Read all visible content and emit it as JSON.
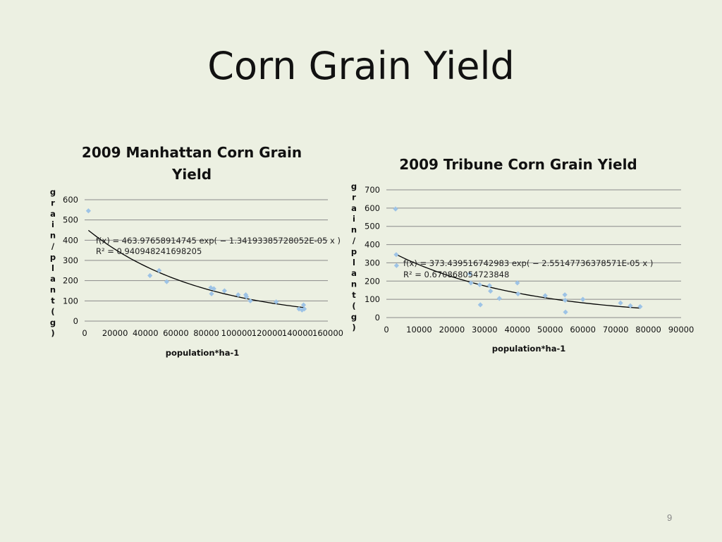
{
  "slide": {
    "title": "Corn Grain Yield",
    "page_number": "9"
  },
  "chart_data": [
    {
      "type": "scatter",
      "title_lines": [
        "2009 Manhattan Corn Grain",
        "Yield"
      ],
      "xlabel": "population*ha-1",
      "ylabel": "grain/plant(g)",
      "xlim": [
        0,
        160000
      ],
      "ylim": [
        0,
        600
      ],
      "xticks": [
        0,
        20000,
        40000,
        60000,
        80000,
        100000,
        120000,
        140000,
        160000
      ],
      "yticks": [
        0,
        100,
        200,
        300,
        400,
        500,
        600
      ],
      "grid": "horizontal",
      "point_color": "#9dc3e6",
      "points": [
        {
          "x": 2500,
          "y": 545
        },
        {
          "x": 43000,
          "y": 225
        },
        {
          "x": 49000,
          "y": 250
        },
        {
          "x": 54000,
          "y": 195
        },
        {
          "x": 83000,
          "y": 165
        },
        {
          "x": 83500,
          "y": 135
        },
        {
          "x": 85000,
          "y": 160
        },
        {
          "x": 92000,
          "y": 150
        },
        {
          "x": 101000,
          "y": 130
        },
        {
          "x": 106000,
          "y": 130
        },
        {
          "x": 106500,
          "y": 120
        },
        {
          "x": 109000,
          "y": 100
        },
        {
          "x": 126000,
          "y": 95
        },
        {
          "x": 141000,
          "y": 60
        },
        {
          "x": 143000,
          "y": 55
        },
        {
          "x": 144000,
          "y": 80
        },
        {
          "x": 144500,
          "y": 60
        }
      ],
      "trendline": {
        "a": 463.97658914745,
        "b": 1.34193385728052e-05,
        "x_start": 2500,
        "x_end": 145000,
        "color": "#000000"
      },
      "equation": "f(x) = 463.97658914745 exp( − 1.34193385728052E-05 x )",
      "r_squared": "R² = 0.940948241698205"
    },
    {
      "type": "scatter",
      "title_lines": [
        "2009 Tribune Corn Grain Yield"
      ],
      "xlabel": "population*ha-1",
      "ylabel": "grain/plant(g)",
      "xlim": [
        0,
        90000
      ],
      "ylim": [
        0,
        700
      ],
      "xticks": [
        0,
        10000,
        20000,
        30000,
        40000,
        50000,
        60000,
        70000,
        80000,
        90000
      ],
      "yticks": [
        0,
        100,
        200,
        300,
        400,
        500,
        600,
        700
      ],
      "grid": "horizontal",
      "point_color": "#9dc3e6",
      "points": [
        {
          "x": 2800,
          "y": 595
        },
        {
          "x": 3000,
          "y": 345
        },
        {
          "x": 3100,
          "y": 285
        },
        {
          "x": 25500,
          "y": 240
        },
        {
          "x": 25800,
          "y": 190
        },
        {
          "x": 28500,
          "y": 180
        },
        {
          "x": 28700,
          "y": 70
        },
        {
          "x": 31500,
          "y": 175
        },
        {
          "x": 31800,
          "y": 145
        },
        {
          "x": 34500,
          "y": 105
        },
        {
          "x": 40000,
          "y": 190
        },
        {
          "x": 40200,
          "y": 130
        },
        {
          "x": 48500,
          "y": 120
        },
        {
          "x": 54500,
          "y": 125
        },
        {
          "x": 54600,
          "y": 95
        },
        {
          "x": 54700,
          "y": 30
        },
        {
          "x": 60000,
          "y": 100
        },
        {
          "x": 71500,
          "y": 80
        },
        {
          "x": 74500,
          "y": 65
        },
        {
          "x": 77500,
          "y": 60
        }
      ],
      "trendline": {
        "a": 373.439516742983,
        "b": 2.55147736378571e-05,
        "x_start": 3000,
        "x_end": 77500,
        "color": "#000000"
      },
      "equation": "f(x) = 373.439516742983 exp( − 2.55147736378571E-05 x )",
      "r_squared": "R² = 0.670868054723848"
    }
  ]
}
